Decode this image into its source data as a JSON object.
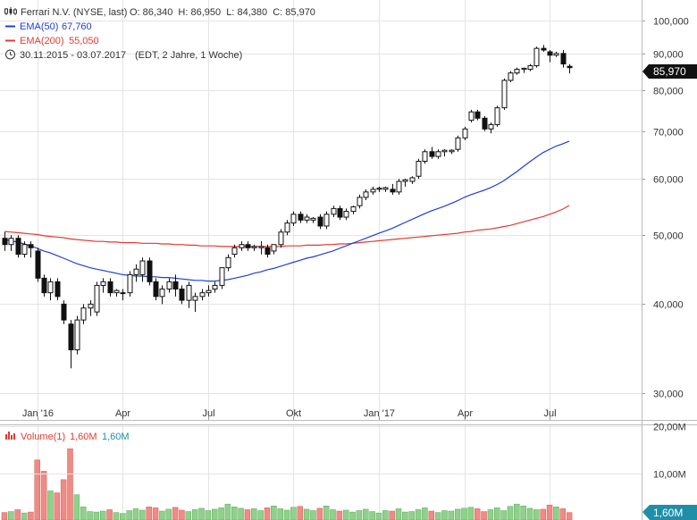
{
  "header": {
    "title": "Ferrari N.V. (NYSE, last)",
    "ohlc": "O: 86,340  H: 86,950  L: 84,380  C: 85,970",
    "ema50_label": "EMA(50)",
    "ema50_value": "67,760",
    "ema200_label": "EMA(200)",
    "ema200_value": "55,050",
    "range": "30.11.2015 - 03.07.2017",
    "range_detail": "(EDT, 2 Jahre, 1 Woche)"
  },
  "price_badge": "85,970",
  "volume_header": {
    "label": "Volume(1)",
    "value1": "1,60M",
    "value2": "1,60M"
  },
  "volume_badge": "1,60M",
  "colors": {
    "ema50": "#1f3fd6",
    "ema200": "#e03c32",
    "badge_bg": "#111111",
    "volume_badge_bg": "#1f8fa8",
    "vol_up": "#8fd18b",
    "vol_down": "#f08a85",
    "grid": "#e4e4e4"
  },
  "chart_data": [
    {
      "type": "candlestick",
      "ylabel": "",
      "y_scale": "log",
      "ylim": [
        27500,
        107000
      ],
      "y_ticks": [
        30000,
        40000,
        50000,
        60000,
        70000,
        80000,
        90000,
        100000
      ],
      "y_tick_labels": [
        "30,000",
        "40,000",
        "50,000",
        "60,000",
        "70,000",
        "80,000",
        "90,000",
        "100,000"
      ],
      "x_ticks": [
        "Jan '16",
        "Apr",
        "Jul",
        "Okt",
        "Jan '17",
        "Apr",
        "Jul"
      ],
      "x_tick_week": [
        5,
        18,
        31,
        44,
        57,
        70,
        83
      ],
      "grid": true,
      "candles": [
        [
          49.5,
          50.5,
          47.5,
          48.5
        ],
        [
          48.5,
          50.0,
          47.5,
          49.5
        ],
        [
          49.5,
          50.0,
          46.5,
          47.0
        ],
        [
          47.0,
          49.0,
          46.5,
          48.5
        ],
        [
          48.5,
          49.0,
          46.5,
          48.0
        ],
        [
          47.5,
          48.0,
          43.0,
          43.5
        ],
        [
          43.5,
          44.0,
          41.0,
          41.5
        ],
        [
          41.5,
          43.5,
          40.5,
          43.0
        ],
        [
          43.0,
          43.5,
          40.5,
          41.0
        ],
        [
          40.0,
          40.5,
          37.5,
          38.0
        ],
        [
          37.5,
          38.0,
          32.5,
          34.5
        ],
        [
          34.5,
          38.5,
          34.0,
          38.0
        ],
        [
          38.0,
          40.0,
          37.5,
          39.5
        ],
        [
          39.5,
          40.5,
          38.5,
          40.0
        ],
        [
          39.0,
          43.0,
          38.5,
          42.5
        ],
        [
          42.5,
          43.5,
          41.5,
          43.0
        ],
        [
          43.0,
          43.5,
          41.0,
          41.5
        ],
        [
          41.5,
          42.0,
          41.0,
          41.8
        ],
        [
          41.5,
          42.0,
          40.5,
          41.5
        ],
        [
          41.5,
          44.5,
          41.0,
          44.0
        ],
        [
          44.0,
          45.5,
          43.0,
          44.8
        ],
        [
          44.0,
          46.5,
          43.0,
          46.0
        ],
        [
          46.0,
          46.5,
          42.5,
          43.0
        ],
        [
          43.0,
          43.5,
          40.5,
          41.0
        ],
        [
          41.0,
          42.5,
          40.0,
          42.0
        ],
        [
          42.0,
          43.5,
          41.5,
          43.0
        ],
        [
          43.0,
          44.0,
          41.0,
          42.0
        ],
        [
          42.0,
          42.5,
          40.0,
          40.5
        ],
        [
          40.5,
          43.0,
          39.5,
          42.5
        ],
        [
          40.5,
          41.5,
          39.0,
          41.0
        ],
        [
          41.0,
          42.0,
          40.5,
          41.5
        ],
        [
          41.5,
          42.5,
          41.0,
          41.8
        ],
        [
          42.0,
          43.0,
          41.5,
          42.5
        ],
        [
          42.5,
          45.0,
          42.0,
          45.0
        ],
        [
          45.0,
          47.0,
          44.5,
          46.5
        ],
        [
          47.0,
          48.5,
          46.5,
          48.0
        ],
        [
          48.0,
          49.0,
          47.5,
          48.5
        ],
        [
          48.5,
          49.0,
          47.5,
          48.0
        ],
        [
          48.0,
          48.5,
          47.5,
          48.2
        ],
        [
          48.0,
          49.0,
          47.0,
          48.2
        ],
        [
          48.0,
          48.5,
          46.5,
          47.0
        ],
        [
          47.5,
          48.5,
          47.0,
          48.5
        ],
        [
          48.5,
          51.0,
          48.0,
          50.5
        ],
        [
          50.5,
          52.5,
          50.0,
          52.0
        ],
        [
          52.0,
          54.0,
          51.5,
          53.5
        ],
        [
          53.5,
          54.0,
          52.0,
          52.5
        ],
        [
          52.5,
          53.5,
          52.0,
          53.0
        ],
        [
          52.5,
          53.0,
          52.0,
          52.8
        ],
        [
          53.0,
          53.5,
          51.0,
          51.5
        ],
        [
          51.5,
          54.0,
          51.0,
          53.5
        ],
        [
          53.5,
          55.0,
          53.0,
          54.5
        ],
        [
          54.5,
          55.0,
          52.5,
          53.0
        ],
        [
          53.0,
          54.5,
          52.5,
          54.0
        ],
        [
          54.0,
          55.0,
          53.5,
          54.8
        ],
        [
          55.0,
          57.0,
          54.5,
          56.5
        ],
        [
          56.5,
          58.0,
          56.0,
          57.5
        ],
        [
          57.5,
          58.5,
          57.0,
          58.0
        ],
        [
          58.0,
          58.5,
          57.5,
          58.2
        ],
        [
          58.0,
          58.5,
          57.5,
          58.3
        ],
        [
          58.0,
          59.0,
          57.0,
          57.5
        ],
        [
          57.5,
          60.0,
          57.0,
          59.5
        ],
        [
          59.5,
          60.0,
          58.5,
          59.8
        ],
        [
          59.5,
          60.5,
          59.0,
          60.2
        ],
        [
          60.5,
          64.0,
          60.0,
          63.5
        ],
        [
          63.5,
          66.0,
          63.0,
          65.5
        ],
        [
          65.5,
          66.5,
          64.0,
          64.5
        ],
        [
          64.5,
          66.0,
          64.0,
          65.5
        ],
        [
          65.5,
          66.0,
          64.5,
          65.8
        ],
        [
          65.5,
          66.0,
          65.0,
          65.8
        ],
        [
          66.0,
          69.0,
          65.5,
          68.5
        ],
        [
          68.5,
          71.0,
          68.0,
          70.5
        ],
        [
          72.5,
          75.0,
          72.0,
          74.5
        ],
        [
          74.5,
          75.0,
          72.5,
          73.0
        ],
        [
          73.0,
          73.5,
          70.0,
          70.5
        ],
        [
          70.5,
          72.0,
          69.5,
          71.5
        ],
        [
          71.5,
          76.0,
          71.0,
          75.5
        ],
        [
          75.5,
          83.0,
          75.0,
          82.5
        ],
        [
          82.5,
          85.0,
          82.0,
          84.5
        ],
        [
          84.5,
          86.0,
          84.0,
          85.5
        ],
        [
          85.5,
          86.0,
          84.5,
          85.8
        ],
        [
          85.5,
          87.0,
          85.0,
          86.5
        ],
        [
          86.5,
          92.0,
          86.0,
          91.5
        ],
        [
          91.5,
          92.5,
          90.5,
          91.0
        ],
        [
          90.5,
          91.0,
          87.5,
          89.5
        ],
        [
          89.5,
          90.5,
          89.0,
          90.0
        ],
        [
          90.0,
          91.0,
          86.0,
          87.0
        ],
        [
          86.34,
          86.95,
          84.38,
          85.97
        ]
      ]
    },
    {
      "type": "line",
      "series": [
        {
          "name": "EMA(50)",
          "values": [
            49.3,
            49.1,
            48.9,
            48.6,
            48.3,
            47.9,
            47.5,
            47.2,
            46.8,
            46.4,
            46.0,
            45.6,
            45.3,
            45.0,
            44.8,
            44.6,
            44.4,
            44.2,
            44.0,
            43.9,
            43.8,
            43.8,
            43.7,
            43.7,
            43.6,
            43.6,
            43.5,
            43.4,
            43.3,
            43.2,
            43.2,
            43.1,
            43.1,
            43.2,
            43.3,
            43.5,
            43.7,
            43.9,
            44.2,
            44.4,
            44.7,
            44.9,
            45.2,
            45.5,
            45.8,
            46.1,
            46.4,
            46.6,
            46.9,
            47.2,
            47.5,
            47.9,
            48.3,
            48.7,
            49.1,
            49.5,
            49.9,
            50.3,
            50.7,
            51.1,
            51.6,
            52.1,
            52.6,
            53.1,
            53.6,
            54.1,
            54.5,
            54.9,
            55.4,
            55.9,
            56.5,
            57.0,
            57.4,
            57.8,
            58.3,
            58.9,
            59.6,
            60.5,
            61.4,
            62.4,
            63.4,
            64.4,
            65.3,
            66.0,
            66.7,
            67.2,
            67.76
          ]
        },
        {
          "name": "EMA(200)",
          "values": [
            50.6,
            50.5,
            50.4,
            50.3,
            50.2,
            50.1,
            49.9,
            49.8,
            49.7,
            49.6,
            49.4,
            49.3,
            49.2,
            49.1,
            49.0,
            49.0,
            48.9,
            48.9,
            48.8,
            48.8,
            48.8,
            48.7,
            48.7,
            48.7,
            48.6,
            48.6,
            48.5,
            48.5,
            48.4,
            48.4,
            48.3,
            48.3,
            48.3,
            48.2,
            48.2,
            48.2,
            48.2,
            48.2,
            48.2,
            48.2,
            48.2,
            48.2,
            48.2,
            48.3,
            48.3,
            48.3,
            48.4,
            48.4,
            48.4,
            48.5,
            48.5,
            48.6,
            48.6,
            48.7,
            48.8,
            48.9,
            49.0,
            49.1,
            49.2,
            49.3,
            49.4,
            49.5,
            49.6,
            49.7,
            49.8,
            49.9,
            50.0,
            50.1,
            50.2,
            50.3,
            50.5,
            50.6,
            50.8,
            50.9,
            51.0,
            51.2,
            51.4,
            51.6,
            51.9,
            52.2,
            52.5,
            52.8,
            53.1,
            53.5,
            53.9,
            54.4,
            55.05
          ]
        }
      ]
    },
    {
      "type": "bar",
      "title": "Volume(1)",
      "ylim": [
        0,
        20
      ],
      "y_ticks": [
        10,
        20
      ],
      "y_tick_labels": [
        "10,00M",
        "20,00M"
      ],
      "values": [
        1.6,
        1.8,
        2.2,
        1.5,
        1.7,
        12.8,
        10.4,
        6.2,
        5.8,
        8.6,
        15.2,
        5.4,
        2.8,
        1.8,
        1.7,
        1.9,
        2.2,
        1.6,
        1.4,
        2.0,
        2.4,
        2.1,
        2.8,
        2.6,
        1.9,
        2.3,
        2.7,
        2.1,
        1.8,
        2.2,
        2.5,
        2.0,
        2.3,
        2.6,
        3.4,
        2.8,
        2.5,
        2.2,
        2.4,
        2.0,
        2.6,
        3.0,
        2.4,
        2.1,
        2.7,
        2.9,
        2.3,
        2.0,
        2.5,
        3.0,
        2.2,
        1.9,
        2.1,
        1.7,
        2.0,
        2.3,
        1.8,
        1.5,
        2.0,
        1.9,
        2.4,
        1.7,
        1.8,
        2.2,
        2.6,
        1.9,
        1.6,
        2.0,
        1.9,
        2.3,
        2.5,
        2.7,
        2.4,
        1.8,
        2.2,
        2.6,
        2.0,
        2.9,
        3.4,
        3.0,
        2.5,
        2.2,
        2.3,
        3.2,
        2.8,
        2.4,
        1.6
      ]
    }
  ]
}
